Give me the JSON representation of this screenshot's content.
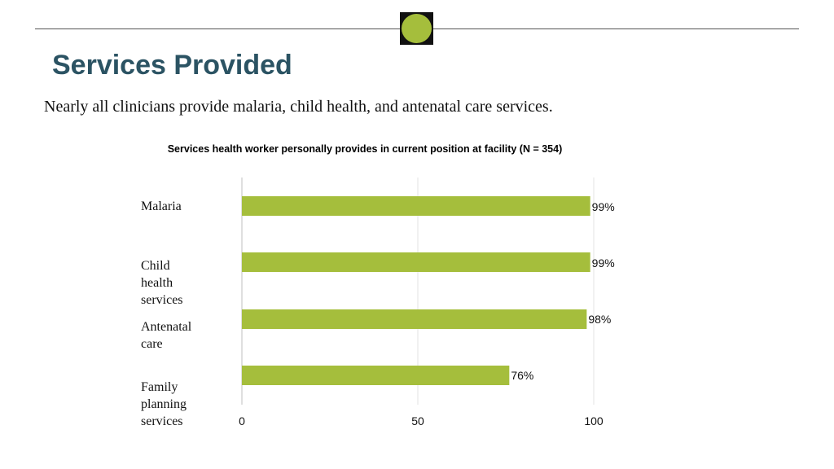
{
  "slide": {
    "title": "Services Provided",
    "subtitle": "Nearly all clinicians provide malaria, child health, and antenatal care services.",
    "accent_color": "#a5be3c",
    "title_color": "#2b5363"
  },
  "chart_data": {
    "type": "bar",
    "orientation": "horizontal",
    "title": "Services health worker personally provides in current position at facility (N = 354)",
    "categories": [
      "Malaria",
      "Child health services",
      "Antenatal care",
      "Family planning services"
    ],
    "values": [
      99,
      99,
      98,
      76
    ],
    "data_labels": [
      "99%",
      "99%",
      "98%",
      "76%"
    ],
    "xticks": [
      "0",
      "50",
      "100"
    ],
    "xlim": [
      0,
      100
    ],
    "grid": true,
    "bar_color": "#a5be3c"
  }
}
